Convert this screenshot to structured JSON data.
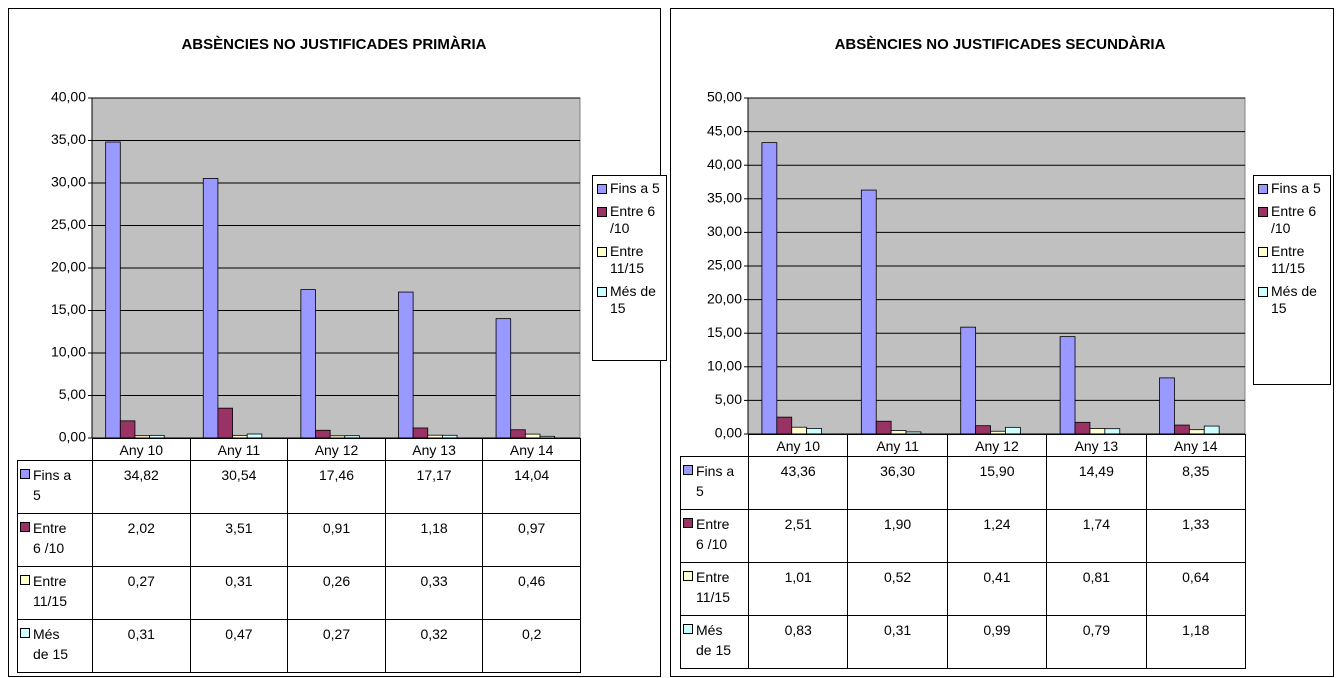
{
  "chart_data": [
    {
      "type": "bar",
      "title": "ABSÈNCIES NO JUSTIFICADES PRIMÀRIA",
      "categories": [
        "Any 10",
        "Any 11",
        "Any 12",
        "Any 13",
        "Any 14"
      ],
      "ylim": [
        0,
        40
      ],
      "yticks": [
        {
          "value": 0,
          "label": "0,00"
        },
        {
          "value": 5,
          "label": "5,00"
        },
        {
          "value": 10,
          "label": "10,00"
        },
        {
          "value": 15,
          "label": "15,00"
        },
        {
          "value": 20,
          "label": "20,00"
        },
        {
          "value": 25,
          "label": "25,00"
        },
        {
          "value": 30,
          "label": "30,00"
        },
        {
          "value": 35,
          "label": "35,00"
        },
        {
          "value": 40,
          "label": "40,00"
        }
      ],
      "grid": true,
      "legend": "right",
      "series": [
        {
          "name": "Fins a 5",
          "color": "#9999ff",
          "values": [
            34.82,
            30.54,
            17.46,
            17.17,
            14.04
          ],
          "value_labels": [
            "34,82",
            "30,54",
            "17,46",
            "17,17",
            "14,04"
          ]
        },
        {
          "name": "Entre 6 /10",
          "color": "#993366",
          "values": [
            2.02,
            3.51,
            0.91,
            1.18,
            0.97
          ],
          "value_labels": [
            "2,02",
            "3,51",
            "0,91",
            "1,18",
            "0,97"
          ]
        },
        {
          "name": "Entre 11/15",
          "color": "#ffffcc",
          "values": [
            0.27,
            0.31,
            0.26,
            0.33,
            0.46
          ],
          "value_labels": [
            "0,27",
            "0,31",
            "0,26",
            "0,33",
            "0,46"
          ]
        },
        {
          "name": "Més de 15",
          "color": "#ccffff",
          "values": [
            0.31,
            0.47,
            0.27,
            0.32,
            0.2
          ],
          "value_labels": [
            "0,31",
            "0,47",
            "0,27",
            "0,32",
            "0,2"
          ]
        }
      ]
    },
    {
      "type": "bar",
      "title": "ABSÈNCIES NO JUSTIFICADES SECUNDÀRIA",
      "categories": [
        "Any 10",
        "Any 11",
        "Any 12",
        "Any 13",
        "Any 14"
      ],
      "ylim": [
        0,
        50
      ],
      "yticks": [
        {
          "value": 0,
          "label": "0,00"
        },
        {
          "value": 5,
          "label": "5,00"
        },
        {
          "value": 10,
          "label": "10,00"
        },
        {
          "value": 15,
          "label": "15,00"
        },
        {
          "value": 20,
          "label": "20,00"
        },
        {
          "value": 25,
          "label": "25,00"
        },
        {
          "value": 30,
          "label": "30,00"
        },
        {
          "value": 35,
          "label": "35,00"
        },
        {
          "value": 40,
          "label": "40,00"
        },
        {
          "value": 45,
          "label": "45,00"
        },
        {
          "value": 50,
          "label": "50,00"
        }
      ],
      "grid": true,
      "legend": "right",
      "series": [
        {
          "name": "Fins a 5",
          "color": "#9999ff",
          "values": [
            43.36,
            36.3,
            15.9,
            14.49,
            8.35
          ],
          "value_labels": [
            "43,36",
            "36,30",
            "15,90",
            "14,49",
            "8,35"
          ]
        },
        {
          "name": "Entre 6 /10",
          "color": "#993366",
          "values": [
            2.51,
            1.9,
            1.24,
            1.74,
            1.33
          ],
          "value_labels": [
            "2,51",
            "1,90",
            "1,24",
            "1,74",
            "1,33"
          ]
        },
        {
          "name": "Entre 11/15",
          "color": "#ffffcc",
          "values": [
            1.01,
            0.52,
            0.41,
            0.81,
            0.64
          ],
          "value_labels": [
            "1,01",
            "0,52",
            "0,41",
            "0,81",
            "0,64"
          ]
        },
        {
          "name": "Més de 15",
          "color": "#ccffff",
          "values": [
            0.83,
            0.31,
            0.99,
            0.79,
            1.18
          ],
          "value_labels": [
            "0,83",
            "0,31",
            "0,99",
            "0,79",
            "1,18"
          ]
        }
      ]
    }
  ]
}
